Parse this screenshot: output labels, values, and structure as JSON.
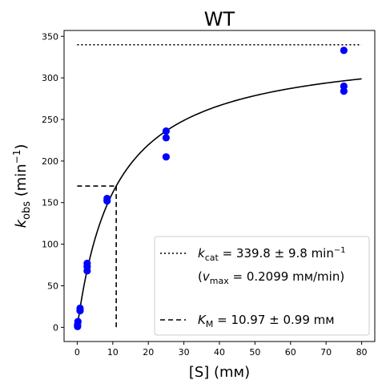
{
  "chart_data": {
    "type": "scatter",
    "title": "WT",
    "xlabel": "[S] (mм)",
    "ylabel_main": "k",
    "ylabel_sub": "obs",
    "ylabel_unit_pre": " (min",
    "ylabel_unit_sup": "−1",
    "ylabel_unit_post": ")",
    "xlim": [
      -3.7,
      83.7
    ],
    "ylim": [
      -17,
      357
    ],
    "xticks": [
      0,
      10,
      20,
      30,
      40,
      50,
      60,
      70,
      80
    ],
    "yticks": [
      0,
      50,
      100,
      150,
      200,
      250,
      300,
      350
    ],
    "grid": false,
    "legend_position": "lower-right",
    "points": [
      [
        0.1,
        1
      ],
      [
        0.1,
        3
      ],
      [
        0.2,
        7
      ],
      [
        0.8,
        20
      ],
      [
        0.8,
        23
      ],
      [
        2.8,
        68
      ],
      [
        2.8,
        73
      ],
      [
        2.8,
        77
      ],
      [
        8.4,
        152
      ],
      [
        8.4,
        155
      ],
      [
        25,
        205
      ],
      [
        25,
        228
      ],
      [
        25,
        236
      ],
      [
        75,
        284
      ],
      [
        75,
        290
      ],
      [
        75,
        333
      ]
    ],
    "point_color": "#0000ff",
    "fit": {
      "kcat": 339.8,
      "Km": 10.97,
      "x_range": [
        0,
        80
      ]
    },
    "kcat_line": {
      "y": 339.8,
      "x_range": [
        0,
        80
      ]
    },
    "km_marker": {
      "x": 10.97,
      "y": 169.9
    },
    "legend": {
      "kcat": {
        "k": "k",
        "sub": "cat",
        "text": " = 339.8 ± 9.8 min",
        "sup": "−1"
      },
      "vmax": {
        "open": "(",
        "v": "v",
        "sub": "max",
        "text": " = 0.2099 mм/min)"
      },
      "km": {
        "k": "K",
        "sub": "M",
        "text": " = 10.97 ± 0.99 mм"
      }
    }
  }
}
